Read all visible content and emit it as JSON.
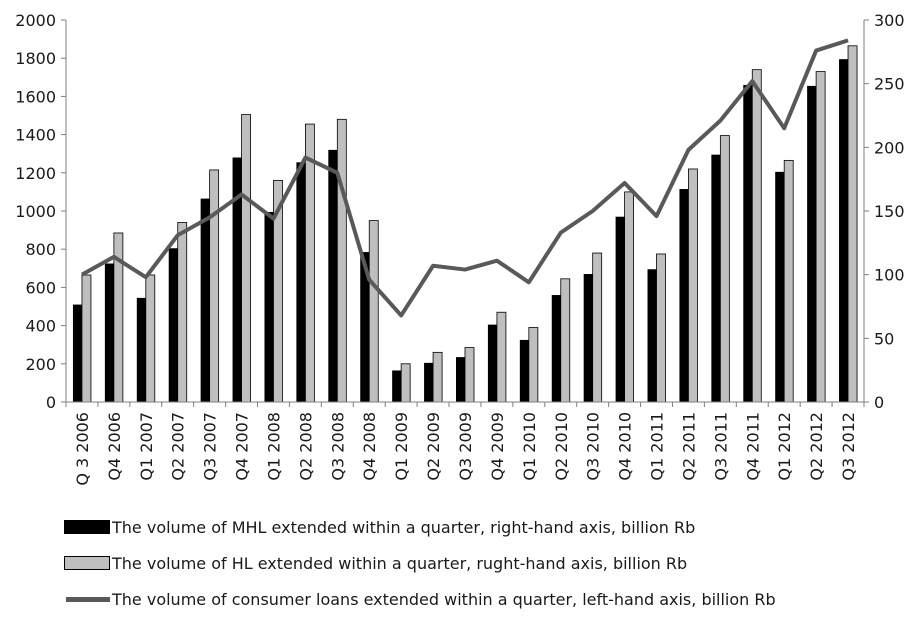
{
  "chart_data": {
    "type": "bar",
    "categories": [
      "Q 3  2006",
      "Q4 2006",
      "Q1  2007",
      "Q2  2007",
      "Q3  2007",
      "Q4  2007",
      "Q1 2008",
      "Q2  2008",
      "Q3  2008",
      "Q4  2008",
      "Q1  2009",
      "Q2  2009",
      "Q3  2009",
      "Q4  2009",
      "Q1  2010",
      "Q2  2010",
      "Q3  2010",
      "Q4  2010",
      "Q1  2011",
      "Q2  2011",
      "Q3  2011",
      "Q4  2011",
      "Q1  2012",
      "Q2  2012",
      "Q3  2012"
    ],
    "left_axis": {
      "min": 0,
      "max": 2000,
      "ticks": [
        0,
        200,
        400,
        600,
        800,
        1000,
        1200,
        1400,
        1600,
        1800,
        2000
      ]
    },
    "right_axis": {
      "min": 0,
      "max": 300,
      "ticks": [
        0,
        50,
        100,
        150,
        200,
        250,
        300
      ]
    },
    "grid": false,
    "legend_position": "bottom",
    "series": [
      {
        "name": "The volume of MHL extended within a quarter, right-hand axis, billion Rb",
        "kind": "bar",
        "axis": "left",
        "color": "#000000",
        "values": [
          510,
          725,
          545,
          805,
          1065,
          1280,
          995,
          1255,
          1320,
          785,
          165,
          205,
          235,
          405,
          325,
          560,
          670,
          970,
          695,
          1115,
          1295,
          1660,
          1205,
          1655,
          1795
        ]
      },
      {
        "name": "The volume of HL extended within a quarter, rught-hand axis, billion Rb",
        "kind": "bar",
        "axis": "left",
        "color": "#bfbfbf",
        "values": [
          665,
          885,
          665,
          940,
          1215,
          1505,
          1160,
          1455,
          1480,
          950,
          200,
          260,
          285,
          470,
          390,
          645,
          780,
          1100,
          775,
          1220,
          1395,
          1740,
          1265,
          1730,
          1865
        ]
      },
      {
        "name": "The volume of consumer loans extended within a quarter, left-hand axis, billion Rb",
        "kind": "line",
        "axis": "right",
        "color": "#595959",
        "values": [
          100,
          114,
          98,
          131,
          145,
          163,
          144,
          192,
          180,
          96,
          68,
          107,
          104,
          111,
          94,
          133,
          150,
          172,
          146,
          198,
          221,
          252,
          215,
          276,
          284
        ]
      }
    ]
  }
}
